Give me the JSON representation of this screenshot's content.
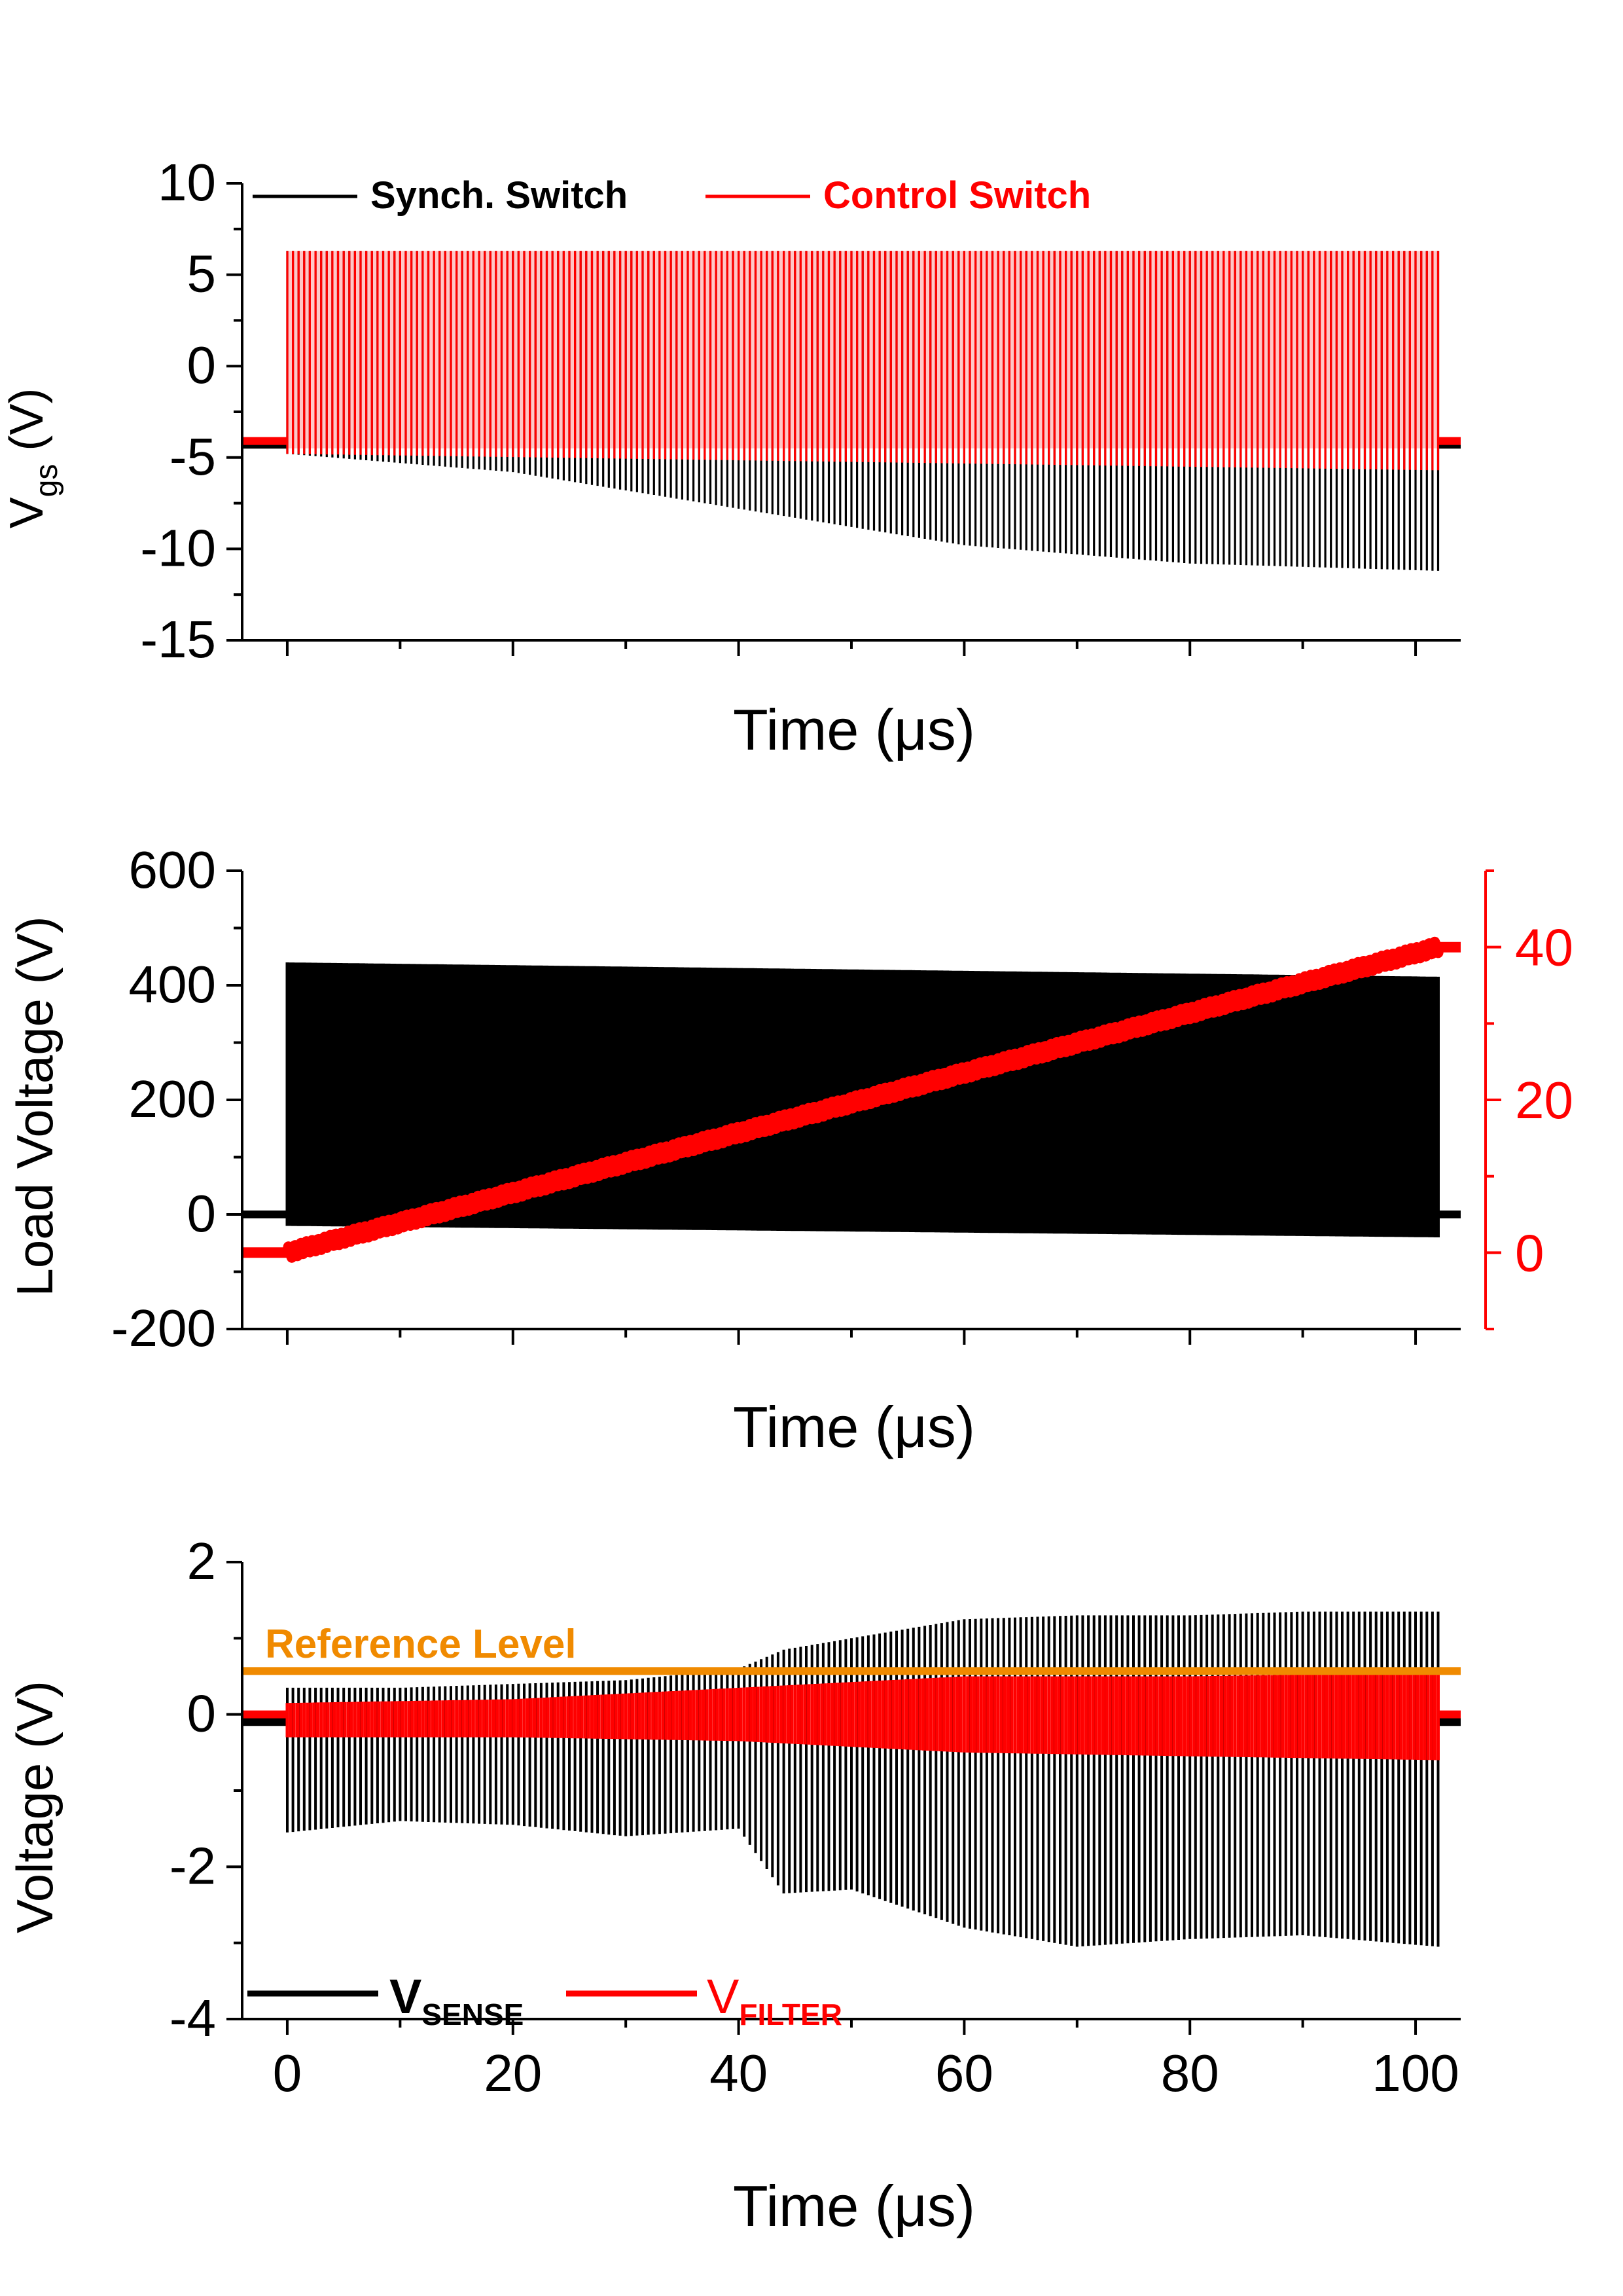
{
  "chart_data": [
    {
      "type": "line",
      "ylabel_main": "V",
      "ylabel_sub": "gs",
      "ylabel_unit": " (V)",
      "xlabel": "Time (μs)",
      "xlim": [
        -4,
        104
      ],
      "ylim": [
        -15,
        10
      ],
      "yticks": [
        10,
        5,
        0,
        -5,
        -10,
        -15
      ],
      "xticks": [
        0,
        20,
        40,
        60,
        80,
        100
      ],
      "show_xticklabels": false,
      "grid": false,
      "legend_position": "top",
      "switching_window": [
        0,
        102
      ],
      "series": [
        {
          "name": "Synch. Switch",
          "color": "#000000",
          "baseline": -4.3,
          "envelope_x": [
            0,
            20,
            40,
            60,
            80,
            102
          ],
          "envelope_high": [
            6.3,
            6.3,
            6.3,
            6.3,
            6.3,
            6.3
          ],
          "envelope_low": [
            -4.8,
            -5.8,
            -7.8,
            -9.8,
            -10.8,
            -11.2
          ]
        },
        {
          "name": "Control Switch",
          "color": "#ff0000",
          "baseline": -4.1,
          "envelope_x": [
            0,
            102
          ],
          "envelope_high": [
            6.3,
            6.3
          ],
          "envelope_low": [
            -4.8,
            -5.7
          ]
        }
      ]
    },
    {
      "type": "line",
      "ylabel": "Load Voltage (V)",
      "xlabel": "Time (μs)",
      "xlim": [
        -4,
        104
      ],
      "ylim": [
        -200,
        600
      ],
      "yticks": [
        600,
        400,
        200,
        0,
        -200
      ],
      "xticks": [
        0,
        20,
        40,
        60,
        80,
        100
      ],
      "show_xticklabels": false,
      "y2lim": [
        -10,
        50
      ],
      "y2ticks": [
        40,
        20,
        0
      ],
      "y2color": "#ff0000",
      "grid": false,
      "series": [
        {
          "axis": "left",
          "color": "#000000",
          "baseline": 0,
          "envelope_x": [
            0,
            102
          ],
          "envelope_high": [
            440,
            415
          ],
          "envelope_low": [
            -20,
            -40
          ]
        },
        {
          "axis": "right",
          "color": "#ff0000",
          "x": [
            -4,
            0,
            102,
            104
          ],
          "y": [
            0,
            0,
            40,
            40
          ],
          "ripple": 0.8
        }
      ]
    },
    {
      "type": "line",
      "ylabel": "Voltage (V)",
      "xlabel": "Time (μs)",
      "xlim": [
        -4,
        104
      ],
      "ylim": [
        -4,
        2
      ],
      "yticks": [
        2,
        0,
        -2,
        -4
      ],
      "xticks": [
        0,
        20,
        40,
        60,
        80,
        100
      ],
      "show_xticklabels": true,
      "grid": false,
      "legend_position": "bottom-left",
      "annotations": [
        {
          "text": "Reference Level",
          "y": 0.57,
          "color": "#f08a00"
        }
      ],
      "series": [
        {
          "name": "V",
          "name_sub": "SENSE",
          "color": "#000000",
          "baseline": -0.1,
          "envelope_x": [
            0,
            10,
            20,
            30,
            40,
            44,
            50,
            60,
            70,
            80,
            90,
            102
          ],
          "envelope_high": [
            0.35,
            0.35,
            0.4,
            0.45,
            0.6,
            0.85,
            1.0,
            1.25,
            1.3,
            1.3,
            1.35,
            1.35
          ],
          "envelope_low": [
            -1.55,
            -1.4,
            -1.45,
            -1.6,
            -1.5,
            -2.35,
            -2.3,
            -2.8,
            -3.05,
            -2.95,
            -2.9,
            -3.05
          ]
        },
        {
          "name": "V",
          "name_sub": "FILTER",
          "color": "#ff0000",
          "baseline": 0,
          "envelope_x": [
            0,
            20,
            40,
            60,
            80,
            102
          ],
          "envelope_high": [
            0.15,
            0.2,
            0.35,
            0.5,
            0.5,
            0.55
          ],
          "envelope_low": [
            -0.3,
            -0.3,
            -0.35,
            -0.5,
            -0.55,
            -0.6
          ]
        },
        {
          "name": "Reference Level",
          "color": "#f08a00",
          "x": [
            -4,
            104
          ],
          "y": [
            0.57,
            0.57
          ]
        }
      ]
    }
  ]
}
